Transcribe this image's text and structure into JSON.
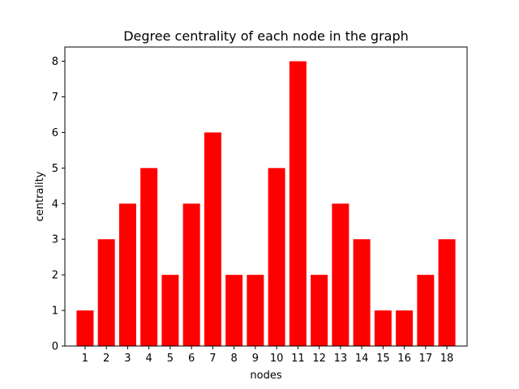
{
  "chart_data": {
    "type": "bar",
    "title": "Degree centrality of each node in the graph",
    "xlabel": "nodes",
    "ylabel": "centrality",
    "categories": [
      "1",
      "2",
      "3",
      "4",
      "5",
      "6",
      "7",
      "8",
      "9",
      "10",
      "11",
      "12",
      "13",
      "14",
      "15",
      "16",
      "17",
      "18"
    ],
    "values": [
      1,
      3,
      4,
      5,
      2,
      4,
      6,
      2,
      2,
      5,
      8,
      2,
      4,
      3,
      1,
      1,
      2,
      3
    ],
    "ylim": [
      0,
      8.4
    ],
    "yticks": [
      "0",
      "1",
      "2",
      "3",
      "4",
      "5",
      "6",
      "7",
      "8"
    ],
    "bar_color": "#ff0000",
    "grid": false
  }
}
